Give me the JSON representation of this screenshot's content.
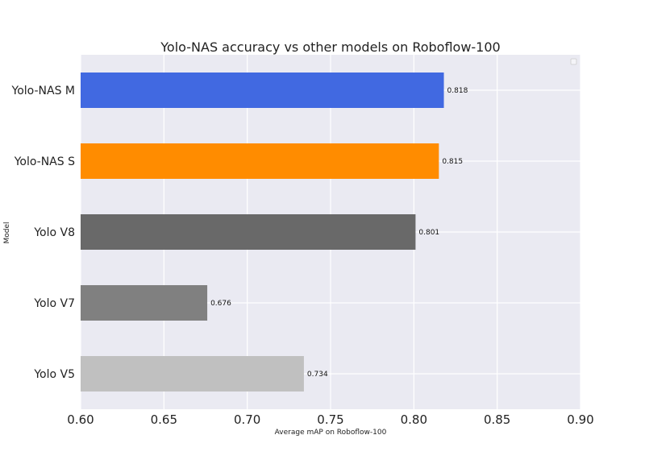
{
  "chart_data": {
    "type": "bar",
    "orientation": "horizontal",
    "title": "Yolo-NAS accuracy vs other models on Roboflow-100",
    "xlabel": "Average mAP on Roboflow-100",
    "ylabel": "Model",
    "categories": [
      "Yolo-NAS M",
      "Yolo-NAS S",
      "Yolo V8",
      "Yolo V7",
      "Yolo V5"
    ],
    "values": [
      0.818,
      0.815,
      0.801,
      0.676,
      0.734
    ],
    "value_labels": [
      "0.818",
      "0.815",
      "0.801",
      "0.676",
      "0.734"
    ],
    "colors": [
      "#4169e1",
      "#ff8c00",
      "#696969",
      "#808080",
      "#c0c0c0"
    ],
    "xlim": [
      0.6,
      0.9
    ],
    "xticks": [
      0.6,
      0.65,
      0.7,
      0.75,
      0.8,
      0.85,
      0.9
    ],
    "xtick_labels": [
      "0.60",
      "0.65",
      "0.70",
      "0.75",
      "0.80",
      "0.85",
      "0.90"
    ],
    "grid": true,
    "background": "#eaeaf2",
    "legend": "top-right, empty"
  }
}
